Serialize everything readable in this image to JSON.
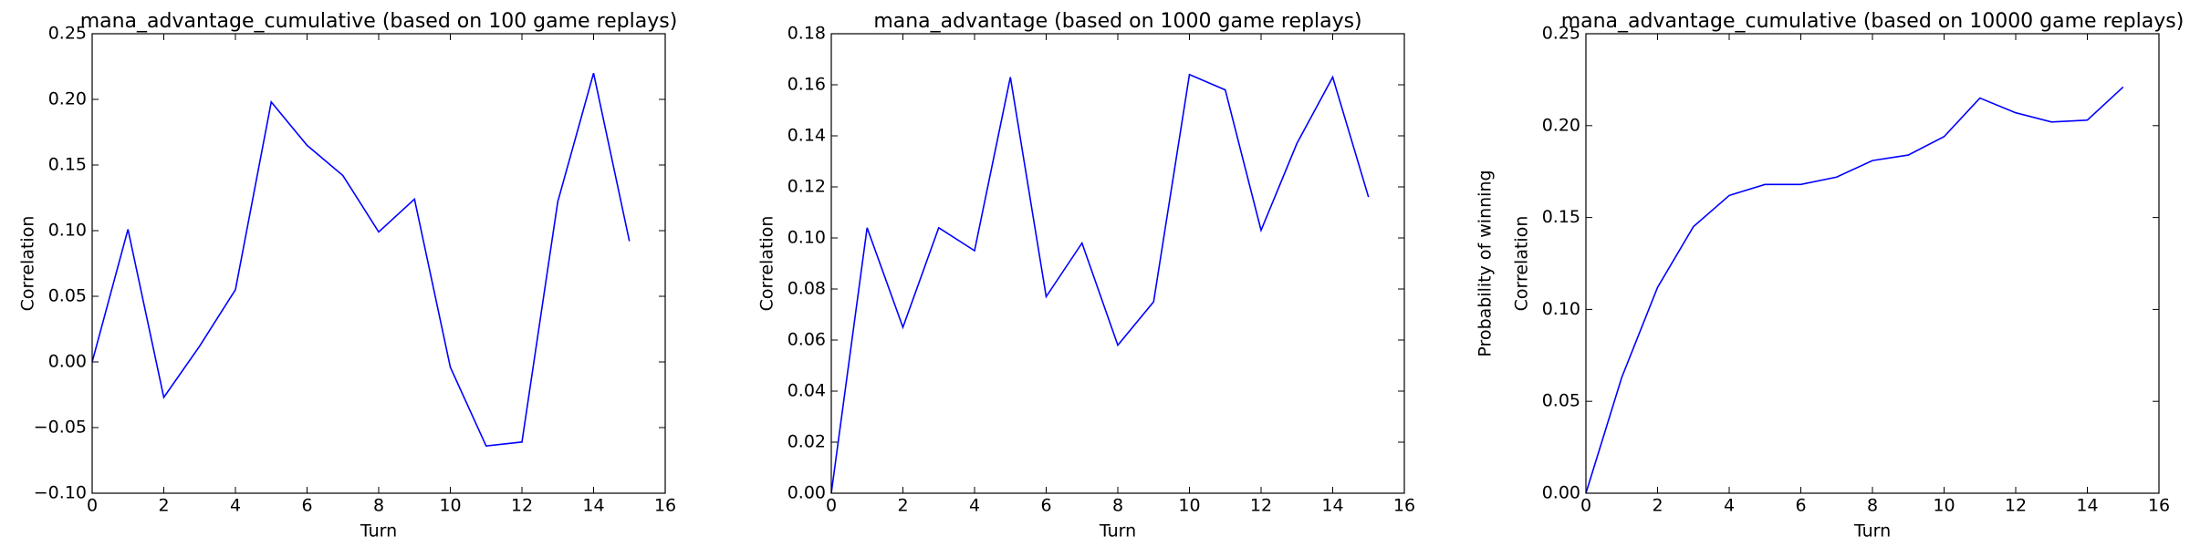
{
  "chart_data": [
    {
      "type": "line",
      "title": "mana_advantage_cumulative (based on 100 game replays)",
      "x_label": "Turn",
      "y_label": "Correlation",
      "x": [
        0,
        1,
        2,
        3,
        4,
        5,
        6,
        7,
        8,
        9,
        10,
        11,
        12,
        13,
        14,
        15
      ],
      "series": [
        {
          "color": "#0000ff",
          "values": [
            0.0,
            0.101,
            -0.027,
            0.012,
            0.055,
            0.198,
            0.165,
            0.142,
            0.099,
            0.124,
            -0.004,
            -0.064,
            -0.061,
            0.122,
            0.22,
            0.092
          ]
        }
      ],
      "xlim": [
        0,
        16
      ],
      "xticks": [
        0,
        2,
        4,
        6,
        8,
        10,
        12,
        14,
        16
      ],
      "ylim": [
        -0.1,
        0.25
      ],
      "yticks": [
        {
          "value": -0.1,
          "label": "−0.10"
        },
        {
          "value": -0.05,
          "label": "−0.05"
        },
        {
          "value": 0,
          "label": "0.00"
        },
        {
          "value": 0.05,
          "label": "0.05"
        },
        {
          "value": 0.1,
          "label": "0.10"
        },
        {
          "value": 0.15,
          "label": "0.15"
        },
        {
          "value": 0.2,
          "label": "0.20"
        },
        {
          "value": 0.25,
          "label": "0.25"
        }
      ]
    },
    {
      "type": "line",
      "title": "mana_advantage (based on 1000 game replays)",
      "x_label": "Turn",
      "y_label": "Correlation",
      "x": [
        0,
        1,
        2,
        3,
        4,
        5,
        6,
        7,
        8,
        9,
        10,
        11,
        12,
        13,
        14,
        15
      ],
      "series": [
        {
          "color": "#0000ff",
          "values": [
            0.0,
            0.104,
            0.065,
            0.104,
            0.095,
            0.163,
            0.077,
            0.098,
            0.058,
            0.075,
            0.164,
            0.158,
            0.103,
            0.137,
            0.163,
            0.116
          ]
        }
      ],
      "xlim": [
        0,
        16
      ],
      "xticks": [
        0,
        2,
        4,
        6,
        8,
        10,
        12,
        14,
        16
      ],
      "ylim": [
        0,
        0.18
      ],
      "yticks": [
        {
          "value": 0,
          "label": "0.00"
        },
        {
          "value": 0.02,
          "label": "0.02"
        },
        {
          "value": 0.04,
          "label": "0.04"
        },
        {
          "value": 0.06,
          "label": "0.06"
        },
        {
          "value": 0.08,
          "label": "0.08"
        },
        {
          "value": 0.1,
          "label": "0.10"
        },
        {
          "value": 0.12,
          "label": "0.12"
        },
        {
          "value": 0.14,
          "label": "0.14"
        },
        {
          "value": 0.16,
          "label": "0.16"
        },
        {
          "value": 0.18,
          "label": "0.18"
        }
      ]
    },
    {
      "type": "line",
      "title": "mana_advantage_cumulative (based on 10000 game replays)",
      "x_label": "Turn",
      "y_label": "Correlation",
      "annotation": "Probability of winning",
      "x": [
        0,
        1,
        2,
        3,
        4,
        5,
        6,
        7,
        8,
        9,
        10,
        11,
        12,
        13,
        14,
        15
      ],
      "series": [
        {
          "color": "#0000ff",
          "values": [
            0.0,
            0.063,
            0.112,
            0.145,
            0.162,
            0.168,
            0.168,
            0.172,
            0.181,
            0.184,
            0.194,
            0.215,
            0.207,
            0.202,
            0.203,
            0.221
          ]
        }
      ],
      "xlim": [
        0,
        16
      ],
      "xticks": [
        0,
        2,
        4,
        6,
        8,
        10,
        12,
        14,
        16
      ],
      "ylim": [
        0,
        0.25
      ],
      "yticks": [
        {
          "value": 0,
          "label": "0.00"
        },
        {
          "value": 0.05,
          "label": "0.05"
        },
        {
          "value": 0.1,
          "label": "0.10"
        },
        {
          "value": 0.15,
          "label": "0.15"
        },
        {
          "value": 0.2,
          "label": "0.20"
        },
        {
          "value": 0.25,
          "label": "0.25"
        }
      ]
    }
  ]
}
